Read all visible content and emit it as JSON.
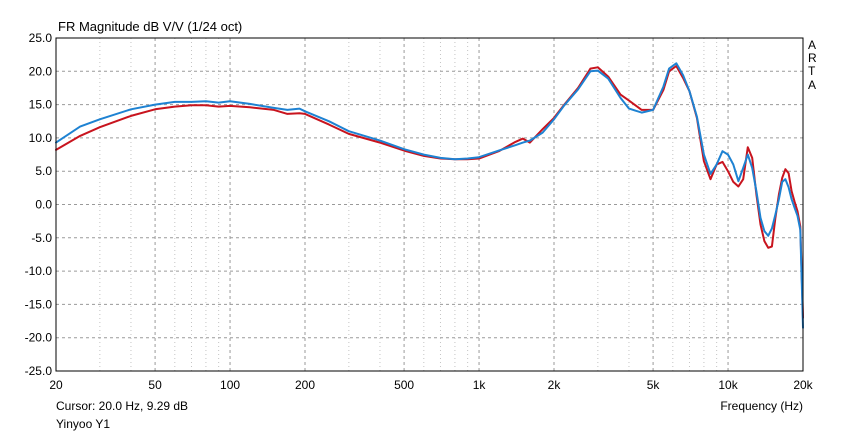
{
  "chart_data": {
    "type": "line",
    "title": "FR Magnitude dB V/V (1/24 oct)",
    "xlabel": "Frequency (Hz)",
    "ylabel": "",
    "x_scale": "log",
    "xlim": [
      20,
      20000
    ],
    "ylim": [
      -25,
      25
    ],
    "y_ticks": [
      25.0,
      20.0,
      15.0,
      10.0,
      5.0,
      0.0,
      -5.0,
      -10.0,
      -15.0,
      -20.0,
      -25.0
    ],
    "y_tick_labels": [
      "25.0",
      "20.0",
      "15.0",
      "10.0",
      "5.0",
      "0.0",
      "-5.0",
      "-10.0",
      "-15.0",
      "-20.0",
      "-25.0"
    ],
    "x_ticks": [
      20,
      50,
      100,
      200,
      500,
      1000,
      2000,
      5000,
      10000,
      20000
    ],
    "x_tick_labels": [
      "20",
      "50",
      "100",
      "200",
      "500",
      "1k",
      "2k",
      "5k",
      "10k",
      "20k"
    ],
    "x_minor_ticks": [
      30,
      40,
      60,
      70,
      80,
      90,
      300,
      400,
      600,
      700,
      800,
      900,
      3000,
      4000,
      6000,
      7000,
      8000,
      9000
    ],
    "grid": true,
    "legend": "none",
    "side_label": [
      "A",
      "R",
      "T",
      "A"
    ],
    "cursor_text": "Cursor: 20.0 Hz, 9.29 dB",
    "caption": "Yinyoo Y1",
    "colors": {
      "red": "#c8141e",
      "blue": "#1e82d2",
      "grid": "#9a9a9a",
      "axis": "#000000"
    },
    "series": [
      {
        "color": "#c8141e",
        "x": [
          20,
          25,
          30,
          40,
          50,
          60,
          70,
          80,
          90,
          100,
          120,
          150,
          170,
          190,
          200,
          250,
          300,
          400,
          500,
          600,
          700,
          800,
          900,
          1000,
          1200,
          1400,
          1500,
          1600,
          1800,
          2000,
          2200,
          2500,
          2800,
          3000,
          3300,
          3700,
          4000,
          4500,
          5000,
          5500,
          5800,
          6200,
          6600,
          7000,
          7500,
          8000,
          8500,
          9000,
          9500,
          10000,
          10500,
          11000,
          11500,
          12000,
          12500,
          13000,
          13500,
          14000,
          14500,
          15000,
          15500,
          16000,
          16500,
          17000,
          17500,
          18000,
          18500,
          19000,
          19500,
          20000
        ],
        "y": [
          8.2,
          10.3,
          11.6,
          13.3,
          14.3,
          14.7,
          14.9,
          14.9,
          14.7,
          14.8,
          14.6,
          14.2,
          13.6,
          13.7,
          13.6,
          12.0,
          10.6,
          9.3,
          8.1,
          7.3,
          6.9,
          6.8,
          6.8,
          6.9,
          8.0,
          9.4,
          9.9,
          9.3,
          11.3,
          13.0,
          15.0,
          17.5,
          20.4,
          20.6,
          19.2,
          16.5,
          15.6,
          14.2,
          14.2,
          17.2,
          20.0,
          20.8,
          19.0,
          17.0,
          13.0,
          6.5,
          3.8,
          6.0,
          6.4,
          5.0,
          3.4,
          2.7,
          3.8,
          8.6,
          7.0,
          1.5,
          -3.0,
          -5.5,
          -6.5,
          -6.3,
          -2.0,
          1.5,
          4.0,
          5.3,
          4.7,
          2.0,
          0.4,
          -1.0,
          -3.3,
          -17.0
        ]
      },
      {
        "color": "#1e82d2",
        "x": [
          20,
          25,
          30,
          40,
          50,
          60,
          70,
          80,
          90,
          100,
          120,
          150,
          170,
          190,
          200,
          250,
          300,
          400,
          500,
          600,
          700,
          800,
          900,
          1000,
          1200,
          1400,
          1500,
          1600,
          1800,
          2000,
          2200,
          2500,
          2800,
          3000,
          3300,
          3700,
          4000,
          4500,
          5000,
          5500,
          5800,
          6200,
          6600,
          7000,
          7500,
          8000,
          8500,
          9000,
          9500,
          10000,
          10500,
          11000,
          11500,
          12000,
          12500,
          13000,
          13500,
          14000,
          14500,
          15000,
          15500,
          16000,
          16500,
          17000,
          17500,
          18000,
          18500,
          19000,
          19500,
          20000
        ],
        "y": [
          9.3,
          11.7,
          12.8,
          14.3,
          15.0,
          15.4,
          15.4,
          15.5,
          15.3,
          15.5,
          15.1,
          14.5,
          14.2,
          14.4,
          14.0,
          12.5,
          11.0,
          9.6,
          8.3,
          7.5,
          7.0,
          6.8,
          6.9,
          7.1,
          8.1,
          8.9,
          9.3,
          9.6,
          10.8,
          12.8,
          14.9,
          17.3,
          20.0,
          20.1,
          18.9,
          16.0,
          14.4,
          13.8,
          14.2,
          17.7,
          20.4,
          21.2,
          19.4,
          17.0,
          13.2,
          7.5,
          4.6,
          6.0,
          8.0,
          7.5,
          6.0,
          3.5,
          5.5,
          7.5,
          5.5,
          2.0,
          -2.0,
          -4.0,
          -4.7,
          -3.6,
          -1.5,
          0.8,
          3.4,
          3.8,
          2.6,
          0.8,
          -0.5,
          -1.7,
          -3.8,
          -18.5
        ]
      }
    ]
  }
}
